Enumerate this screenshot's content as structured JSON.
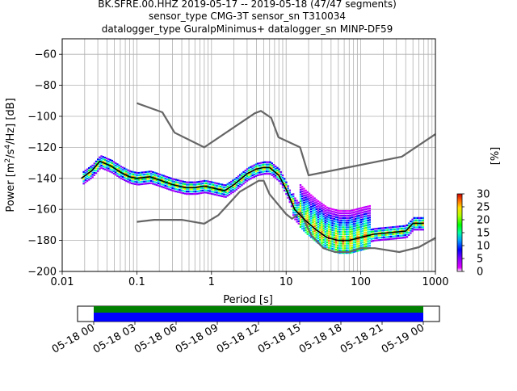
{
  "chart_data": [
    {
      "type": "heatmap",
      "title_lines": [
        "BK.SFRE.00.HHZ   2019-05-17 -- 2019-05-18  (47/47 segments)",
        "sensor_type CMG-3T sensor_sn T310034",
        "datalogger_type GuralpMinimus+ datalogger_sn MINP-DF59"
      ],
      "xlabel": "Period [s]",
      "ylabel_parts": [
        "Power [m",
        "2",
        "/s",
        "4",
        "/Hz] [dB]"
      ],
      "xscale": "log",
      "xlim": [
        0.01,
        1000
      ],
      "ylim": [
        -200,
        -50
      ],
      "x_ticks": [
        0.01,
        0.1,
        1,
        10,
        100,
        1000
      ],
      "x_tick_labels": [
        "0.01",
        "0.1",
        "1",
        "10",
        "100",
        "1000"
      ],
      "y_ticks": [
        -200,
        -180,
        -160,
        -140,
        -120,
        -100,
        -80,
        -60
      ],
      "y_tick_labels": [
        "−200",
        "−180",
        "−160",
        "−140",
        "−120",
        "−100",
        "−80",
        "−60"
      ],
      "grid": true,
      "colorbar": {
        "label": "[%]",
        "range": [
          0,
          30
        ],
        "ticks": [
          0,
          5,
          10,
          15,
          20,
          25,
          30
        ],
        "tick_labels": [
          "0",
          "5",
          "10",
          "15",
          "20",
          "25",
          "30"
        ]
      },
      "series": [
        {
          "role": "noise-model-high",
          "color": "#666666",
          "x": [
            0.1,
            0.22,
            0.32,
            0.8,
            3.8,
            4.6,
            6.3,
            7.9,
            15.4,
            20,
            354.8,
            1000
          ],
          "y": [
            -91.5,
            -97.4,
            -110.5,
            -120,
            -98,
            -96.5,
            -101,
            -113.5,
            -120,
            -138,
            -126,
            -111.5
          ]
        },
        {
          "role": "noise-model-low",
          "color": "#666666",
          "x": [
            0.1,
            0.17,
            0.4,
            0.8,
            1.24,
            2.4,
            4.3,
            5,
            6,
            10,
            12,
            15.6,
            21.9,
            31.6,
            45,
            70,
            101,
            154,
            328,
            600,
            1000
          ],
          "y": [
            -168,
            -166.7,
            -166.7,
            -169.2,
            -163.7,
            -148.6,
            -141.5,
            -141.5,
            -150.2,
            -163,
            -166,
            -162,
            -177,
            -185,
            -187.5,
            -187.5,
            -185,
            -185,
            -187.5,
            -184.4,
            -178.4
          ]
        },
        {
          "role": "mode",
          "color": "#000000",
          "x": [
            0.018,
            0.025,
            0.032,
            0.045,
            0.06,
            0.08,
            0.1,
            0.15,
            0.2,
            0.3,
            0.45,
            0.6,
            0.8,
            1,
            1.5,
            2,
            3,
            4,
            5,
            6,
            8,
            10,
            13,
            18,
            25,
            35,
            50,
            70,
            100,
            150,
            250,
            400,
            500,
            700
          ],
          "y": [
            -140,
            -135,
            -129,
            -132,
            -136,
            -139,
            -140,
            -139,
            -141,
            -144,
            -146,
            -146,
            -145,
            -146,
            -148,
            -144,
            -137,
            -134,
            -133,
            -133,
            -138,
            -147,
            -160,
            -167,
            -173,
            -178,
            -180,
            -180,
            -178,
            -176,
            -175,
            -174,
            -169,
            -169
          ]
        }
      ]
    },
    {
      "type": "timeline",
      "tick_labels": [
        "05-18 00",
        "05-18 03",
        "05-18 06",
        "05-18 09",
        "05-18 12",
        "05-18 15",
        "05-18 18",
        "05-18 21",
        "05-19 00"
      ],
      "coverage_colors": [
        "#008000",
        "#0000ff"
      ]
    }
  ]
}
